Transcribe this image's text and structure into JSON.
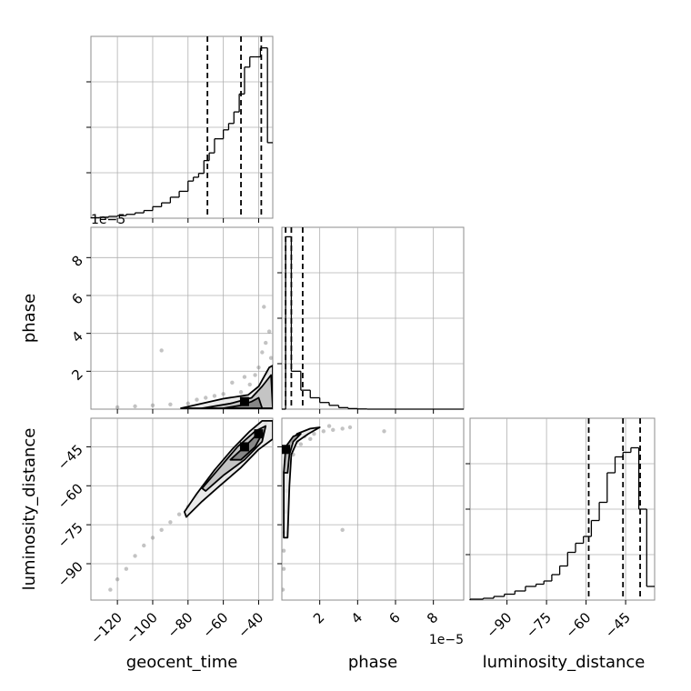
{
  "chart_data": {
    "type": "corner",
    "parameters": [
      "geocent_time",
      "phase",
      "luminosity_distance"
    ],
    "exponent_labels": {
      "phase_x": "1e−5",
      "phase_y": "1e−5"
    },
    "axes": {
      "geocent_time": {
        "range": [
          -135,
          -32
        ],
        "ticks": [
          -120,
          -100,
          -80,
          -60,
          -40
        ],
        "tick_labels": [
          "−120",
          "−100",
          "−80",
          "−60",
          "−40"
        ]
      },
      "phase": {
        "range": [
          0,
          9.6
        ],
        "ticks": [
          2,
          4,
          6,
          8
        ],
        "tick_labels": [
          "2",
          "4",
          "6",
          "8"
        ]
      },
      "luminosity_distance": {
        "range": [
          -104,
          -34
        ],
        "ticks": [
          -90,
          -75,
          -60,
          -45
        ],
        "tick_labels": [
          "−90",
          "−75",
          "−60",
          "−45"
        ]
      }
    },
    "histograms": {
      "geocent_time": {
        "bin_edges": [
          -135,
          -130,
          -125,
          -120,
          -115,
          -110,
          -105,
          -100,
          -95,
          -90,
          -85,
          -80,
          -77,
          -74,
          -71,
          -68,
          -65,
          -60,
          -57,
          -54,
          -51,
          -48,
          -45,
          -42,
          -39,
          -35,
          -32
        ],
        "counts": [
          0.2,
          0.4,
          0.7,
          1,
          1.5,
          2.1,
          3,
          4.5,
          6,
          8.2,
          10.5,
          14.5,
          16,
          17.5,
          22.5,
          25.5,
          31,
          34.5,
          37,
          41.5,
          48.5,
          59,
          63,
          63,
          66.5,
          29.5
        ],
        "quantiles": [
          -69,
          -50,
          -38.5
        ],
        "max": 71
      },
      "phase": {
        "bin_edges": [
          0,
          0.2,
          0.5,
          1,
          1.5,
          2,
          2.5,
          3,
          3.5,
          4,
          4.5,
          9.6
        ],
        "counts": [
          0,
          9.1,
          2,
          1,
          0.6,
          0.35,
          0.2,
          0.08,
          0.03,
          0.01,
          0
        ],
        "quantiles": [
          0.2,
          0.5,
          1.1
        ],
        "max": 9.6
      },
      "luminosity_distance": {
        "bin_edges": [
          -104,
          -99,
          -95,
          -91,
          -87,
          -83,
          -79,
          -76,
          -73,
          -70,
          -67,
          -64,
          -61,
          -58,
          -55,
          -52,
          -49,
          -46,
          -43,
          -40,
          -37,
          -34
        ],
        "counts": [
          0.2,
          0.4,
          0.8,
          1.3,
          2,
          3,
          3.5,
          4.2,
          5.6,
          7.5,
          10.5,
          12.5,
          14,
          17.5,
          21.5,
          28,
          31.5,
          32.5,
          33.5,
          20,
          3
        ],
        "quantiles": [
          -59,
          -46,
          -39.5
        ],
        "max": 40
      }
    },
    "scatter_2d": {
      "phase_vs_geocent_time": [
        [
          -120,
          0.1
        ],
        [
          -110,
          0.15
        ],
        [
          -100,
          0.2
        ],
        [
          -95,
          3.1
        ],
        [
          -90,
          0.25
        ],
        [
          -80,
          0.3
        ],
        [
          -75,
          0.5
        ],
        [
          -70,
          0.6
        ],
        [
          -65,
          0.7
        ],
        [
          -60,
          0.8
        ],
        [
          -55,
          1.4
        ],
        [
          -50,
          0.9
        ],
        [
          -48,
          1.7
        ],
        [
          -45,
          1.3
        ],
        [
          -42,
          1.8
        ],
        [
          -40,
          2.2
        ],
        [
          -38,
          3.0
        ],
        [
          -37,
          5.4
        ],
        [
          -36,
          3.5
        ],
        [
          -34,
          4.1
        ],
        [
          -33,
          2.7
        ],
        [
          -35,
          1.9
        ],
        [
          -41,
          0.5
        ],
        [
          -46,
          0.3
        ]
      ],
      "luminosity_distance_vs_geocent_time": [
        [
          -124,
          -100
        ],
        [
          -120,
          -96
        ],
        [
          -115,
          -92
        ],
        [
          -110,
          -87
        ],
        [
          -105,
          -83
        ],
        [
          -100,
          -80
        ],
        [
          -95,
          -77
        ],
        [
          -90,
          -74
        ],
        [
          -85,
          -71
        ],
        [
          -80,
          -68
        ],
        [
          -75,
          -64
        ],
        [
          -70,
          -60
        ],
        [
          -65,
          -56
        ],
        [
          -60,
          -52
        ],
        [
          -55,
          -48
        ],
        [
          -50,
          -45
        ],
        [
          -45,
          -41
        ],
        [
          -40,
          -38
        ],
        [
          -36,
          -36
        ],
        [
          -38,
          -42
        ],
        [
          -42,
          -46
        ],
        [
          -46,
          -49
        ],
        [
          -52,
          -53
        ],
        [
          -58,
          -57
        ]
      ],
      "luminosity_distance_vs_phase": [
        [
          0.05,
          -100
        ],
        [
          0.1,
          -92
        ],
        [
          0.1,
          -85
        ],
        [
          0.15,
          -78
        ],
        [
          0.2,
          -70
        ],
        [
          0.25,
          -62
        ],
        [
          0.3,
          -55
        ],
        [
          0.35,
          -50
        ],
        [
          0.5,
          -46
        ],
        [
          0.8,
          -43
        ],
        [
          1.2,
          -41
        ],
        [
          1.7,
          -40
        ],
        [
          2.2,
          -39
        ],
        [
          2.7,
          -38.5
        ],
        [
          3.2,
          -38
        ],
        [
          3.6,
          -37.5
        ],
        [
          5.4,
          -39
        ],
        [
          3.2,
          -77
        ],
        [
          0.6,
          -48
        ],
        [
          1.0,
          -44
        ],
        [
          0.3,
          -47
        ],
        [
          0.4,
          -52
        ],
        [
          1.5,
          -42
        ],
        [
          2.5,
          -37
        ]
      ]
    },
    "contours": {
      "phase_vs_geocent_time": [
        [
          [
            -84,
            0.05
          ],
          [
            -60,
            0.55
          ],
          [
            -46,
            0.75
          ],
          [
            -40,
            1.2
          ],
          [
            -34,
            2.2
          ],
          [
            -32,
            2.3
          ],
          [
            -32,
            0.05
          ]
        ],
        [
          [
            -72,
            0.05
          ],
          [
            -56,
            0.3
          ],
          [
            -44,
            0.6
          ],
          [
            -38,
            1.2
          ],
          [
            -33,
            1.8
          ],
          [
            -32,
            0.05
          ]
        ],
        [
          [
            -60,
            0.05
          ],
          [
            -50,
            0.2
          ],
          [
            -44,
            0.4
          ],
          [
            -40,
            0.6
          ],
          [
            -38,
            0.05
          ]
        ]
      ],
      "luminosity_distance_vs_geocent_time": [
        [
          [
            -82,
            -70
          ],
          [
            -75,
            -63
          ],
          [
            -65,
            -54
          ],
          [
            -55,
            -46
          ],
          [
            -45,
            -39
          ],
          [
            -38,
            -35
          ],
          [
            -32,
            -35
          ],
          [
            -32,
            -42
          ],
          [
            -40,
            -46
          ],
          [
            -50,
            -53
          ],
          [
            -62,
            -60
          ],
          [
            -72,
            -66
          ],
          [
            -81,
            -72
          ]
        ],
        [
          [
            -72,
            -61
          ],
          [
            -62,
            -53
          ],
          [
            -52,
            -45
          ],
          [
            -42,
            -39
          ],
          [
            -36,
            -37
          ],
          [
            -38,
            -43
          ],
          [
            -48,
            -50
          ],
          [
            -60,
            -56
          ],
          [
            -70,
            -62
          ]
        ],
        [
          [
            -56,
            -50
          ],
          [
            -48,
            -45
          ],
          [
            -42,
            -41
          ],
          [
            -38,
            -40
          ],
          [
            -42,
            -45
          ],
          [
            -50,
            -50
          ]
        ]
      ],
      "luminosity_distance_vs_phase": [
        [
          [
            0.1,
            -80
          ],
          [
            0.1,
            -55
          ],
          [
            0.3,
            -45
          ],
          [
            0.8,
            -40
          ],
          [
            1.5,
            -38
          ],
          [
            2.0,
            -37.5
          ],
          [
            1.4,
            -40
          ],
          [
            0.8,
            -43
          ],
          [
            0.5,
            -48
          ],
          [
            0.4,
            -60
          ],
          [
            0.3,
            -80
          ]
        ],
        [
          [
            0.1,
            -55
          ],
          [
            0.2,
            -45
          ],
          [
            0.6,
            -41
          ],
          [
            1.0,
            -40
          ],
          [
            0.6,
            -43
          ],
          [
            0.4,
            -48
          ],
          [
            0.3,
            -55
          ]
        ]
      ]
    },
    "dark_cells": {
      "phase_vs_geocent_time": [
        [
          -48,
          0.4
        ]
      ],
      "luminosity_distance_vs_geocent_time": [
        [
          -40,
          -40
        ],
        [
          -48,
          -45
        ]
      ],
      "luminosity_distance_vs_phase": [
        [
          0.2,
          -46
        ]
      ]
    }
  }
}
